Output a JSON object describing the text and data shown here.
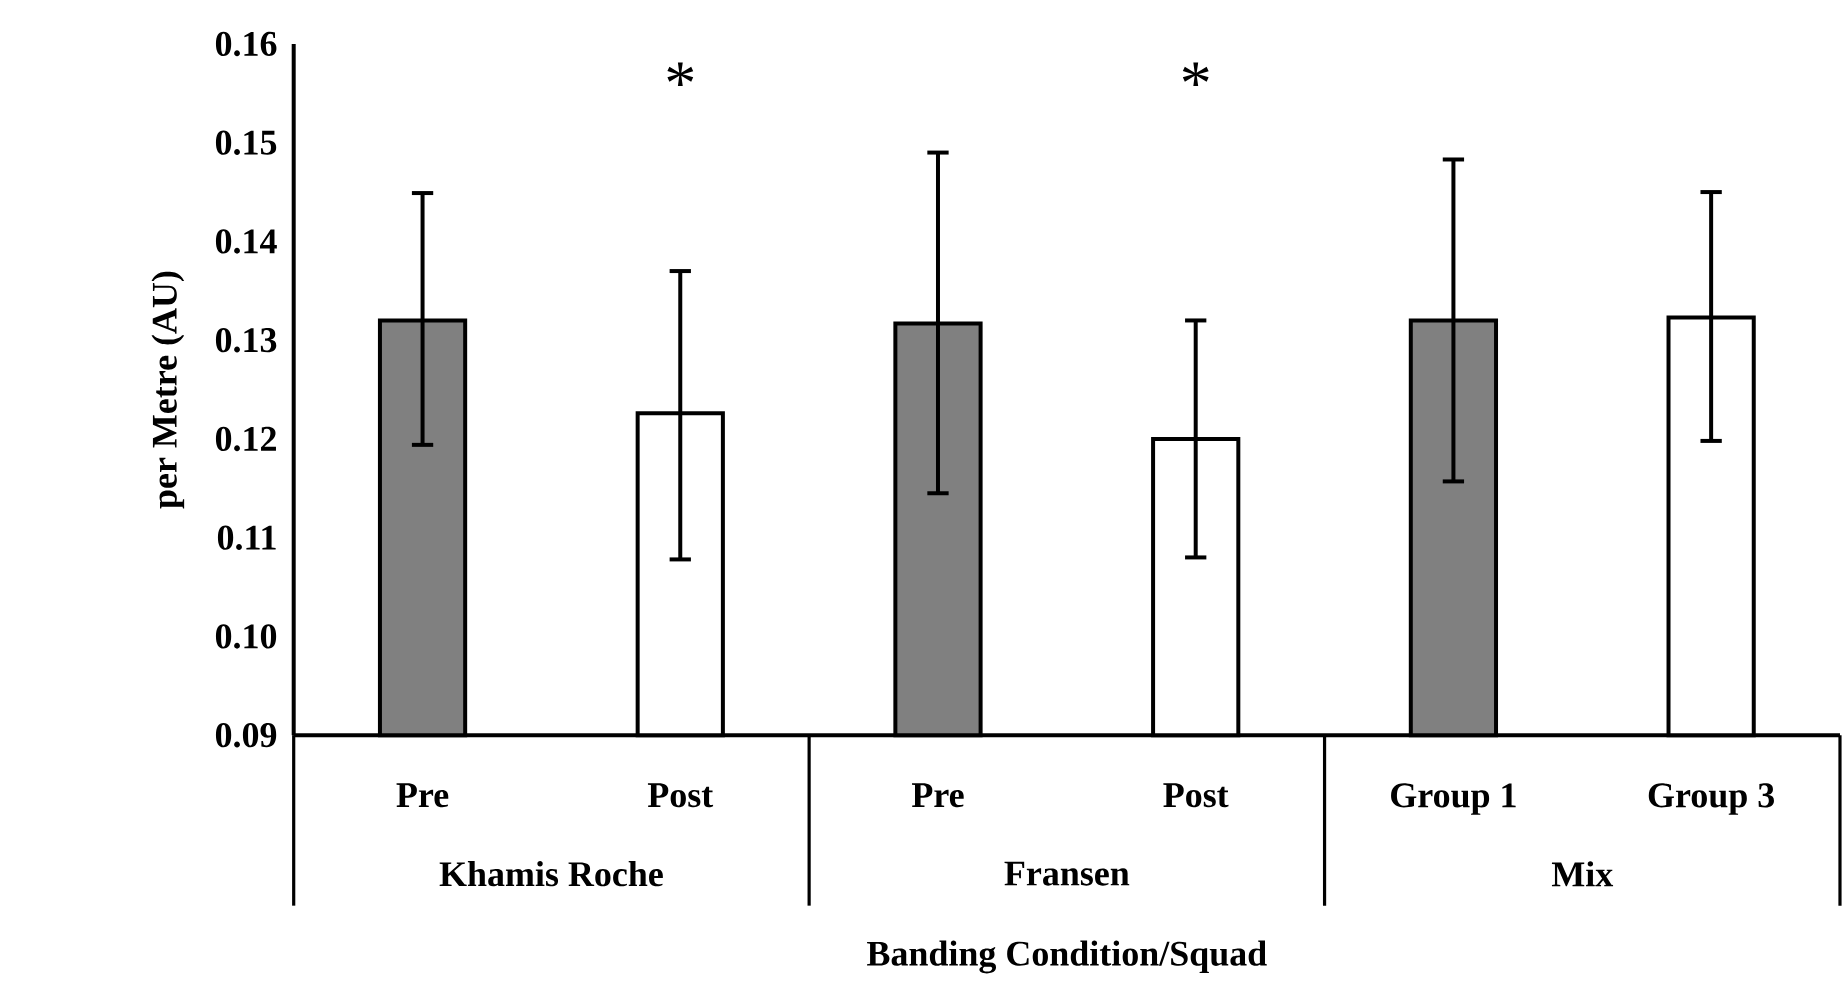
{
  "chart_data": {
    "type": "bar",
    "ylabel": "per Metre (AU)",
    "xlabel": "Banding Condition/Squad",
    "categories": [
      "Pre",
      "Post",
      "Pre",
      "Post",
      "Group 1",
      "Group 3"
    ],
    "values": [
      0.132,
      0.1226,
      0.1317,
      0.12,
      0.132,
      0.1323
    ],
    "errors": [
      [
        0.1194,
        0.1449
      ],
      [
        0.1078,
        0.137
      ],
      [
        0.1145,
        0.149
      ],
      [
        0.108,
        0.132
      ],
      [
        0.1157,
        0.1483
      ],
      [
        0.1198,
        0.145
      ]
    ],
    "colors": [
      "#808080",
      "#ffffff",
      "#808080",
      "#ffffff",
      "#808080",
      "#ffffff"
    ],
    "ylim": [
      0.09,
      0.16
    ],
    "yticks": [
      {
        "value": 0.09,
        "label": "0.09"
      },
      {
        "value": 0.1,
        "label": "0.10"
      },
      {
        "value": 0.11,
        "label": "0.11"
      },
      {
        "value": 0.12,
        "label": "0.12"
      },
      {
        "value": 0.13,
        "label": "0.13"
      },
      {
        "value": 0.14,
        "label": "0.14"
      },
      {
        "value": 0.15,
        "label": "0.15"
      },
      {
        "value": 0.16,
        "label": "0.16"
      }
    ],
    "annotations": [
      "Khamis Roche",
      "Fransen",
      "Mix",
      "*",
      "*"
    ],
    "grid": false
  }
}
